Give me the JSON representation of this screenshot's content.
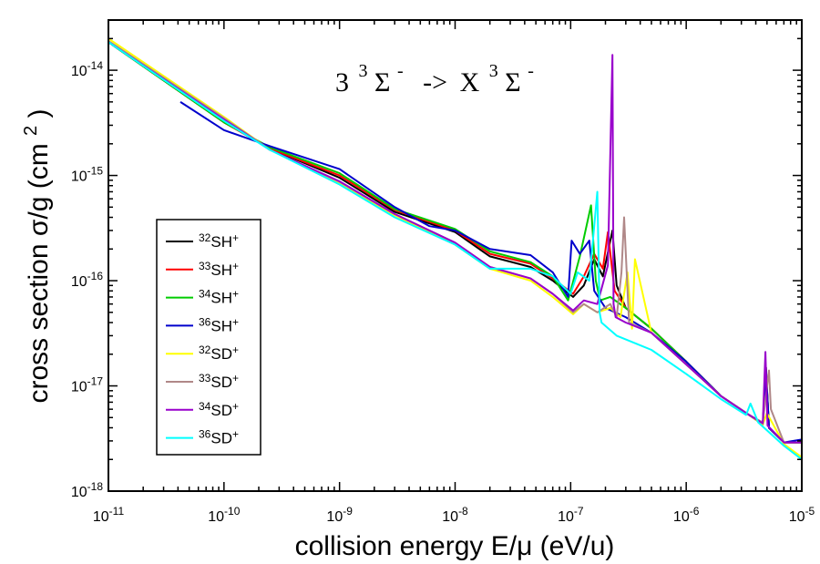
{
  "chart_data": {
    "type": "line",
    "title": "",
    "annotation": {
      "prefix": "3",
      "state1_sup": "3",
      "state1": "Σ",
      "state1_sign": "-",
      "arrow": "->",
      "state2_prefix": "X",
      "state2_sup": "3",
      "state2": "Σ",
      "state2_sign": "-"
    },
    "xlabel": "collision energy E/μ (eV/u)",
    "ylabel": "cross section σ/g (cm²)",
    "ylabel_parts": {
      "main": "cross section σ/g (cm",
      "sup": "2",
      "close": ")"
    },
    "xscale": "log",
    "yscale": "log",
    "xlim": [
      1e-11,
      1e-05
    ],
    "ylim": [
      1e-18,
      3e-14
    ],
    "x_ticks": [
      {
        "base": "10",
        "exp": "-11",
        "value": 1e-11
      },
      {
        "base": "10",
        "exp": "-10",
        "value": 1e-10
      },
      {
        "base": "10",
        "exp": "-9",
        "value": 1e-09
      },
      {
        "base": "10",
        "exp": "-8",
        "value": 1e-08
      },
      {
        "base": "10",
        "exp": "-7",
        "value": 1e-07
      },
      {
        "base": "10",
        "exp": "-6",
        "value": 1e-06
      },
      {
        "base": "10",
        "exp": "-5",
        "value": 1e-05
      }
    ],
    "y_ticks": [
      {
        "base": "10",
        "exp": "-18",
        "value": 1e-18
      },
      {
        "base": "10",
        "exp": "-17",
        "value": 1e-17
      },
      {
        "base": "10",
        "exp": "-16",
        "value": 1e-16
      },
      {
        "base": "10",
        "exp": "-15",
        "value": 1e-15
      },
      {
        "base": "10",
        "exp": "-14",
        "value": 1e-14
      }
    ],
    "grid": false,
    "legend_position": "left",
    "series": [
      {
        "sup": "32",
        "base": "SH",
        "charge": "+",
        "color": "#000000",
        "x": [
          1e-11,
          1e-10,
          2.5e-10,
          1e-09,
          3e-09,
          1e-08,
          2e-08,
          4.5e-08,
          7e-08,
          1.05e-07,
          1.3e-07,
          1.6e-07,
          1.9e-07,
          2.3e-07,
          2.5e-07,
          3e-07,
          5e-07,
          1e-06,
          2e-06,
          3.5e-06,
          4.6e-06,
          4.9e-06,
          5.2e-06,
          7e-06,
          1e-05
        ],
        "y": [
          1.85e-14,
          3.2e-15,
          1.8e-15,
          9.5e-16,
          4.5e-16,
          2.9e-16,
          1.7e-16,
          1.35e-16,
          1e-16,
          7e-17,
          9e-17,
          1.6e-16,
          1.1e-16,
          3e-16,
          9e-17,
          5.5e-17,
          3.5e-17,
          1.7e-17,
          8e-18,
          5.3e-18,
          4.3e-18,
          1.5e-17,
          4e-18,
          2.9e-18,
          2.9e-18
        ]
      },
      {
        "sup": "33",
        "base": "SH",
        "charge": "+",
        "color": "#ff0000",
        "x": [
          1e-11,
          1e-10,
          2.5e-10,
          1e-09,
          3e-09,
          1e-08,
          2e-08,
          4.5e-08,
          7e-08,
          1.05e-07,
          1.3e-07,
          1.6e-07,
          1.9e-07,
          2.1e-07,
          2.4e-07,
          3e-07,
          5e-07,
          1e-06,
          2e-06,
          3.5e-06,
          4.6e-06,
          4.9e-06,
          5.2e-06,
          7e-06,
          1e-05
        ],
        "y": [
          1.85e-14,
          3.2e-15,
          1.8e-15,
          1e-15,
          4.7e-16,
          3e-16,
          1.8e-16,
          1.45e-16,
          1.05e-16,
          7.5e-17,
          1.1e-16,
          1.8e-16,
          1.3e-16,
          2.9e-16,
          8e-17,
          5.5e-17,
          3.5e-17,
          1.7e-17,
          8e-18,
          5.3e-18,
          4.3e-18,
          1.4e-17,
          4e-18,
          2.9e-18,
          2.9e-18
        ]
      },
      {
        "sup": "34",
        "base": "SH",
        "charge": "+",
        "color": "#00cc00",
        "x": [
          1e-11,
          1e-10,
          2.5e-10,
          1e-09,
          3e-09,
          1e-08,
          2e-08,
          4.5e-08,
          7e-08,
          9.5e-08,
          1.2e-07,
          1.5e-07,
          1.65e-07,
          1.8e-07,
          2.2e-07,
          3e-07,
          5e-07,
          1e-06,
          2e-06,
          3.5e-06,
          4.6e-06,
          4.9e-06,
          5.2e-06,
          7e-06,
          1e-05
        ],
        "y": [
          1.85e-14,
          3.2e-15,
          1.85e-15,
          1.05e-15,
          4.8e-16,
          3.1e-16,
          1.9e-16,
          1.5e-16,
          1.1e-16,
          6.5e-17,
          1.7e-16,
          5.2e-16,
          1e-16,
          6.5e-17,
          7e-17,
          5.5e-17,
          3.5e-17,
          1.7e-17,
          8e-18,
          5.3e-18,
          4.3e-18,
          1.4e-17,
          4e-18,
          2.9e-18,
          2.9e-18
        ]
      },
      {
        "sup": "36",
        "base": "SH",
        "charge": "+",
        "color": "#0000cc",
        "x": [
          4.2e-11,
          1e-10,
          2.5e-10,
          1e-09,
          3e-09,
          6e-09,
          1e-08,
          2e-08,
          4.5e-08,
          7e-08,
          9.5e-08,
          1.02e-07,
          1.2e-07,
          1.45e-07,
          1.6e-07,
          2e-07,
          3e-07,
          5e-07,
          1e-06,
          2e-06,
          3.5e-06,
          4.6e-06,
          4.9e-06,
          5.2e-06,
          7e-06,
          1e-05
        ],
        "y": [
          5e-15,
          2.7e-15,
          1.9e-15,
          1.15e-15,
          5e-16,
          3.3e-16,
          3e-16,
          2e-16,
          1.75e-16,
          1.2e-16,
          7e-17,
          2.4e-16,
          1.8e-16,
          2.4e-16,
          8e-17,
          5.5e-17,
          4.5e-17,
          3.2e-17,
          1.7e-17,
          8e-18,
          5.3e-18,
          4.3e-18,
          1.4e-17,
          4e-18,
          2.9e-18,
          3.1e-18
        ]
      },
      {
        "sup": "32",
        "base": "SD",
        "charge": "+",
        "color": "#ffff00",
        "x": [
          1e-11,
          1e-10,
          2.5e-10,
          1e-09,
          3e-09,
          1e-08,
          2e-08,
          4.5e-08,
          7e-08,
          1.05e-07,
          1.3e-07,
          1.7e-07,
          2.2e-07,
          2.7e-07,
          3.1e-07,
          3.4e-07,
          3.6e-07,
          5e-07,
          1e-06,
          2e-06,
          3.5e-06,
          4.6e-06,
          5e-06,
          7e-06,
          1e-05
        ],
        "y": [
          2e-14,
          3.6e-15,
          1.75e-15,
          8.5e-16,
          4.2e-16,
          2.2e-16,
          1.3e-16,
          1e-16,
          7e-17,
          4.8e-17,
          6e-17,
          5e-17,
          5.5e-17,
          4.5e-17,
          1.2e-16,
          3.5e-17,
          1.6e-16,
          3.2e-17,
          1.6e-17,
          8e-18,
          5.3e-18,
          4.3e-18,
          5.5e-18,
          2.8e-18,
          2.1e-18
        ]
      },
      {
        "sup": "33",
        "base": "SD",
        "charge": "+",
        "color": "#b08888",
        "x": [
          1e-11,
          1e-10,
          2.5e-10,
          1e-09,
          3e-09,
          1e-08,
          2e-08,
          4.5e-08,
          7e-08,
          1.05e-07,
          1.3e-07,
          1.7e-07,
          2.2e-07,
          2.5e-07,
          2.75e-07,
          2.9e-07,
          3.2e-07,
          5e-07,
          1e-06,
          2e-06,
          3.5e-06,
          4.6e-06,
          5.2e-06,
          5.4e-06,
          7e-06,
          1e-05
        ],
        "y": [
          1.9e-14,
          3.5e-15,
          1.75e-15,
          8.7e-16,
          4.3e-16,
          2.3e-16,
          1.35e-16,
          1.05e-16,
          7.5e-17,
          5e-17,
          6e-17,
          5e-17,
          6e-17,
          4.5e-17,
          1.2e-16,
          4e-16,
          4e-17,
          3.2e-17,
          1.6e-17,
          8e-18,
          5.3e-18,
          4.5e-18,
          1.4e-17,
          6e-18,
          2.9e-18,
          2.9e-18
        ]
      },
      {
        "sup": "34",
        "base": "SD",
        "charge": "+",
        "color": "#9900cc",
        "x": [
          1e-11,
          1e-10,
          2.5e-10,
          1e-09,
          3e-09,
          1e-08,
          2e-08,
          4.5e-08,
          7e-08,
          1.05e-07,
          1.3e-07,
          1.7e-07,
          2.1e-07,
          2.3e-07,
          2.35e-07,
          2.45e-07,
          3e-07,
          5e-07,
          1e-06,
          2e-06,
          3.5e-06,
          4.6e-06,
          4.85e-06,
          5.05e-06,
          7e-06,
          1e-05
        ],
        "y": [
          1.85e-14,
          3.4e-15,
          1.75e-15,
          8.8e-16,
          4.3e-16,
          2.3e-16,
          1.35e-16,
          1.05e-16,
          7.5e-17,
          5.2e-17,
          6.5e-17,
          6e-17,
          1.4e-16,
          1.4e-14,
          6e-17,
          4.5e-17,
          4e-17,
          3.2e-17,
          1.6e-17,
          8e-18,
          5.3e-18,
          4.4e-18,
          2.1e-17,
          4.2e-18,
          2.9e-18,
          2.9e-18
        ]
      },
      {
        "sup": "36",
        "base": "SD",
        "charge": "+",
        "color": "#00ffff",
        "x": [
          1e-11,
          1e-10,
          2.5e-10,
          1e-09,
          3e-09,
          1e-08,
          2e-08,
          4.5e-08,
          7e-08,
          1e-07,
          1.15e-07,
          1.45e-07,
          1.7e-07,
          1.78e-07,
          1.85e-07,
          2.5e-07,
          5e-07,
          1e-06,
          2e-06,
          3.3e-06,
          3.6e-06,
          4.2e-06,
          7e-06,
          1e-05
        ],
        "y": [
          1.85e-14,
          3.3e-15,
          1.75e-15,
          8.2e-16,
          4e-16,
          2.2e-16,
          1.3e-16,
          1.3e-16,
          1.1e-16,
          7.5e-17,
          1.2e-16,
          1e-16,
          7e-16,
          5e-17,
          4e-17,
          3e-17,
          2.2e-17,
          1.3e-17,
          7.5e-18,
          5.3e-18,
          6.8e-18,
          4.5e-18,
          2.7e-18,
          2e-18
        ]
      }
    ]
  }
}
